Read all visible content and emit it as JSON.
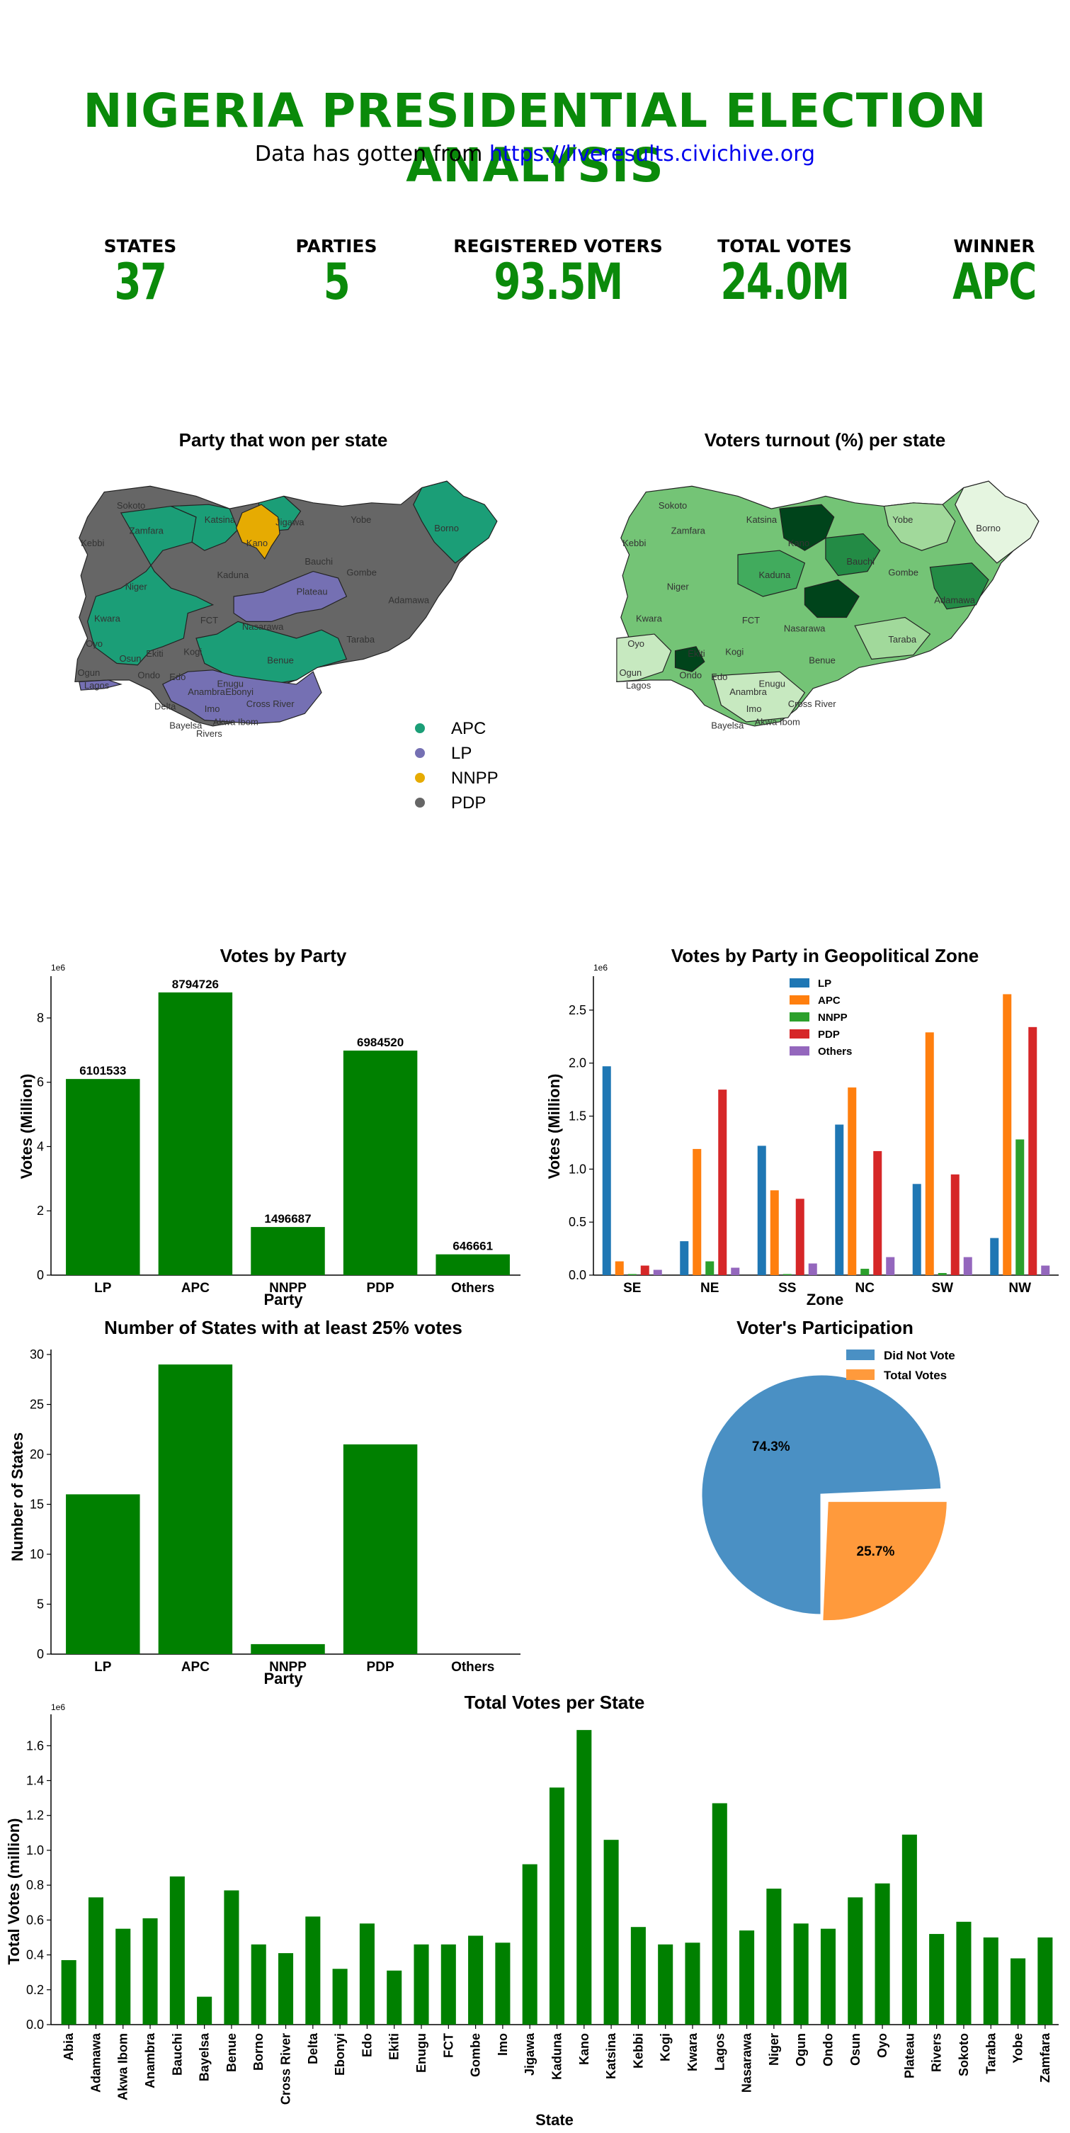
{
  "header": {
    "title": "NIGERIA PRESIDENTIAL ELECTION ANALYSIS",
    "source_prefix": "Data has gotten from",
    "source_link": "https://liveresults.civichive.org"
  },
  "kpis": [
    {
      "label": "STATES",
      "value": "37"
    },
    {
      "label": "PARTIES",
      "value": "5"
    },
    {
      "label": "REGISTERED VOTERS",
      "value": "93.5M"
    },
    {
      "label": "TOTAL VOTES",
      "value": "24.0M"
    },
    {
      "label": "WINNER",
      "value": "APC"
    }
  ],
  "colors": {
    "accent": "#008000",
    "APC": "#1b9e77",
    "LP": "#7570b3",
    "NNPP": "#e6ab02",
    "PDP": "#666666"
  },
  "maps": {
    "winner_title": "Party that won per state",
    "turnout_title": "Voters turnout (%) per state",
    "legend": [
      "APC",
      "LP",
      "NNPP",
      "PDP"
    ],
    "state_labels": [
      "Sokoto",
      "Zamfara",
      "Katsina",
      "Kano",
      "Jigawa",
      "Yobe",
      "Borno",
      "Kebbi",
      "Kaduna",
      "Bauchi",
      "Gombe",
      "Niger",
      "Adamawa",
      "Plateau",
      "Kwara",
      "FCT",
      "Nasarawa",
      "Oyo",
      "Ekiti",
      "Kogi",
      "Taraba",
      "Osun",
      "Benue",
      "Ogun",
      "Ondo",
      "Edo",
      "Lagos",
      "Enugu",
      "Anambra",
      "Ebonyi",
      "Cross River",
      "Delta",
      "Imo",
      "Akwa Ibom",
      "Bayelsa",
      "Rivers"
    ]
  },
  "chart_data": [
    {
      "type": "bar",
      "title": "Votes by Party",
      "xlabel": "Party",
      "ylabel": "Votes (Million)",
      "scale_note": "1e6",
      "categories": [
        "LP",
        "APC",
        "NNPP",
        "PDP",
        "Others"
      ],
      "values": [
        6101533,
        8794726,
        1496687,
        6984520,
        646661
      ],
      "data_labels": [
        "6101533",
        "8794726",
        "1496687",
        "6984520",
        "646661"
      ],
      "yticks": [
        "0",
        "2",
        "4",
        "6",
        "8"
      ],
      "ylim": [
        0,
        9300000
      ],
      "color": "#008000"
    },
    {
      "type": "bar",
      "title": "Votes by Party in Geopolitical Zone",
      "xlabel": "Zone",
      "ylabel": "Votes (Million)",
      "scale_note": "1e6",
      "categories": [
        "SE",
        "NE",
        "SS",
        "NC",
        "SW",
        "NW"
      ],
      "yticks": [
        "0.0",
        "0.5",
        "1.0",
        "1.5",
        "2.0",
        "2.5"
      ],
      "ylim": [
        0,
        2.82
      ],
      "legend_position": "top-center",
      "series": [
        {
          "name": "LP",
          "color": "#1f77b4",
          "values": [
            1.97,
            0.32,
            1.22,
            1.42,
            0.86,
            0.35
          ]
        },
        {
          "name": "APC",
          "color": "#ff7f0e",
          "values": [
            0.13,
            1.19,
            0.8,
            1.77,
            2.29,
            2.65
          ]
        },
        {
          "name": "NNPP",
          "color": "#2ca02c",
          "values": [
            0.01,
            0.13,
            0.01,
            0.06,
            0.02,
            1.28
          ]
        },
        {
          "name": "PDP",
          "color": "#d62728",
          "values": [
            0.09,
            1.75,
            0.72,
            1.17,
            0.95,
            2.34
          ]
        },
        {
          "name": "Others",
          "color": "#9467bd",
          "values": [
            0.05,
            0.07,
            0.11,
            0.17,
            0.17,
            0.09
          ]
        }
      ]
    },
    {
      "type": "bar",
      "title": "Number of States with at least 25% votes",
      "xlabel": "Party",
      "ylabel": "Number of States",
      "categories": [
        "LP",
        "APC",
        "NNPP",
        "PDP",
        "Others"
      ],
      "values": [
        16,
        29,
        1,
        21,
        0
      ],
      "yticks": [
        "0",
        "5",
        "10",
        "15",
        "20",
        "25",
        "30"
      ],
      "ylim": [
        0,
        30.5
      ],
      "color": "#008000"
    },
    {
      "type": "pie",
      "title": "Voter's Participation",
      "labels": [
        "Did Not Vote",
        "Total Votes"
      ],
      "values": [
        74.3,
        25.7
      ],
      "value_labels": [
        "74.3%",
        "25.7%"
      ],
      "colors": [
        "#4a90c4",
        "#ff9a3c"
      ],
      "legend_position": "top-right"
    },
    {
      "type": "bar",
      "title": "Total Votes per State",
      "xlabel": "State",
      "ylabel": "Total Votes (million)",
      "scale_note": "1e6",
      "yticks": [
        "0.0",
        "0.2",
        "0.4",
        "0.6",
        "0.8",
        "1.0",
        "1.2",
        "1.4",
        "1.6"
      ],
      "ylim": [
        0,
        1.78
      ],
      "color": "#008000",
      "categories": [
        "Abia",
        "Adamawa",
        "Akwa Ibom",
        "Anambra",
        "Bauchi",
        "Bayelsa",
        "Benue",
        "Borno",
        "Cross River",
        "Delta",
        "Ebonyi",
        "Edo",
        "Ekiti",
        "Enugu",
        "FCT",
        "Gombe",
        "Imo",
        "Jigawa",
        "Kaduna",
        "Kano",
        "Katsina",
        "Kebbi",
        "Kogi",
        "Kwara",
        "Lagos",
        "Nasarawa",
        "Niger",
        "Ogun",
        "Ondo",
        "Osun",
        "Oyo",
        "Plateau",
        "Rivers",
        "Sokoto",
        "Taraba",
        "Yobe",
        "Zamfara"
      ],
      "values": [
        0.37,
        0.73,
        0.55,
        0.61,
        0.85,
        0.16,
        0.77,
        0.46,
        0.41,
        0.62,
        0.32,
        0.58,
        0.31,
        0.46,
        0.46,
        0.51,
        0.47,
        0.92,
        1.36,
        1.69,
        1.06,
        0.56,
        0.46,
        0.47,
        1.27,
        0.54,
        0.78,
        0.58,
        0.55,
        0.73,
        0.81,
        1.09,
        0.52,
        0.59,
        0.5,
        0.38,
        0.5
      ]
    }
  ]
}
